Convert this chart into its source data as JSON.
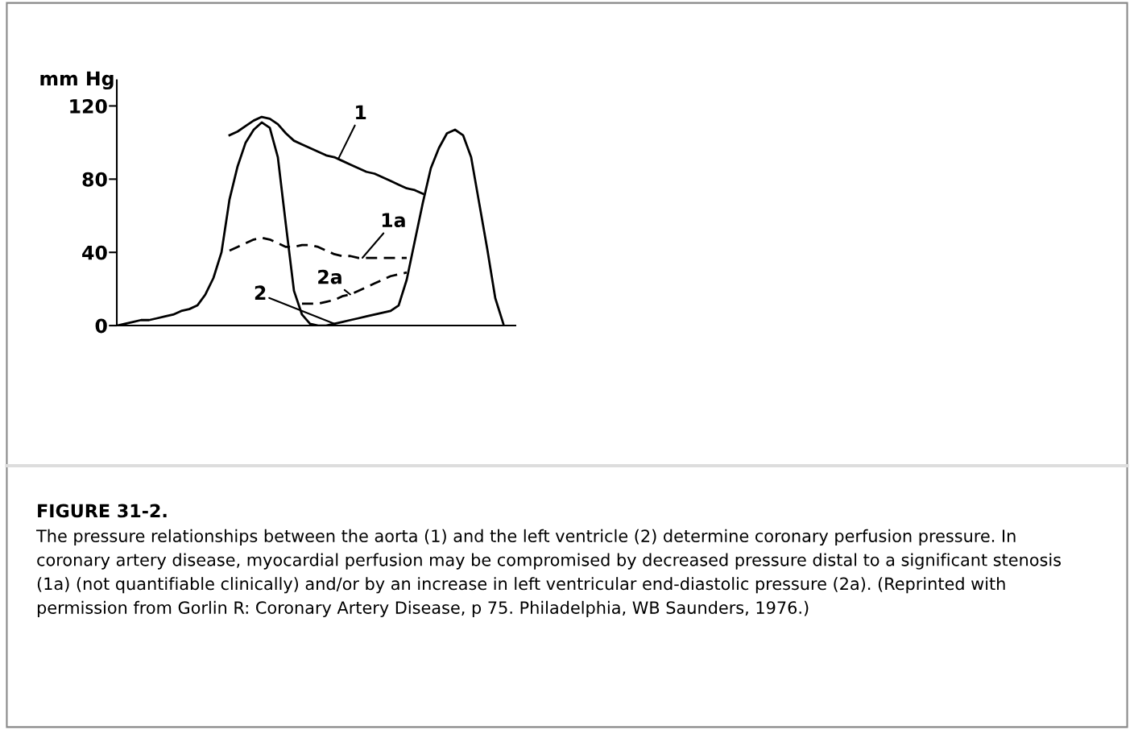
{
  "chart_data": {
    "type": "line",
    "ylabel": "mm Hg",
    "categories": [
      null,
      null,
      null,
      null,
      null,
      null,
      null,
      null,
      null,
      null,
      null,
      null,
      null,
      null,
      null,
      null,
      null,
      null,
      null,
      null,
      null,
      null,
      null,
      null,
      null,
      null,
      null,
      null,
      null,
      null,
      null,
      null,
      null,
      null,
      null,
      null,
      null,
      null,
      null,
      null,
      null,
      null,
      null,
      null,
      null,
      null,
      null,
      null,
      null,
      null
    ],
    "series": [
      {
        "name": "1",
        "color": "#000000",
        "line_style": "solid",
        "values": [
          null,
          null,
          null,
          null,
          null,
          null,
          null,
          null,
          null,
          null,
          null,
          null,
          null,
          null,
          104,
          106,
          109,
          112,
          114,
          113,
          110,
          105,
          101,
          99,
          97,
          95,
          93,
          92,
          90,
          88,
          86,
          84,
          83,
          81,
          79,
          77,
          75,
          74,
          72,
          null,
          null,
          null,
          null,
          null,
          null,
          null,
          null,
          null,
          null,
          null
        ]
      },
      {
        "name": "2",
        "color": "#000000",
        "line_style": "solid",
        "values": [
          0,
          1,
          2,
          3,
          3,
          4,
          5,
          6,
          8,
          9,
          11,
          17,
          26,
          40,
          69,
          87,
          100,
          107,
          111,
          108,
          92,
          55,
          19,
          6,
          1,
          0,
          0,
          1,
          2,
          3,
          4,
          5,
          6,
          7,
          8,
          11,
          25,
          46,
          67,
          86,
          97,
          105,
          107,
          104,
          92,
          67,
          42,
          15,
          1,
          null
        ]
      },
      {
        "name": "1a",
        "color": "#000000",
        "line_style": "dashed",
        "values": [
          null,
          null,
          null,
          null,
          null,
          null,
          null,
          null,
          null,
          null,
          null,
          null,
          null,
          null,
          41,
          43,
          45,
          47,
          48,
          47,
          45,
          43,
          43,
          44,
          44,
          43,
          41,
          39,
          38,
          38,
          37,
          37,
          37,
          37,
          37,
          37,
          37,
          null,
          null,
          null,
          null,
          null,
          null,
          null,
          null,
          null,
          null,
          null,
          null,
          null
        ]
      },
      {
        "name": "2a",
        "color": "#000000",
        "line_style": "dashed",
        "values": [
          null,
          null,
          null,
          null,
          null,
          null,
          null,
          null,
          null,
          null,
          null,
          null,
          null,
          null,
          null,
          null,
          null,
          null,
          null,
          null,
          null,
          null,
          null,
          12,
          12,
          12,
          13,
          14,
          16,
          17,
          19,
          21,
          23,
          25,
          27,
          28,
          29,
          null,
          null,
          null,
          null,
          null,
          null,
          null,
          null,
          null,
          null,
          null,
          null,
          null
        ]
      }
    ],
    "ylim": [
      0,
      134
    ],
    "yticks": [
      0,
      40,
      80,
      120
    ],
    "grid": false,
    "legend": false,
    "annotations": [
      "FIGURE 31-2.",
      "The pressure relationships between the aorta (1) and the left ventricle (2) determine coronary perfusion pressure. In coronary artery disease, myocardial perfusion may be compromised by decreased pressure distal to a significant stenosis (1a) (not quantifiable clinically) and/or by an increase in left ventricular end-diastolic pressure (2a). (Reprinted with permission from Gorlin R: Coronary Artery Disease, p 75. Philadelphia, WB Saunders, 1976.)"
    ]
  }
}
